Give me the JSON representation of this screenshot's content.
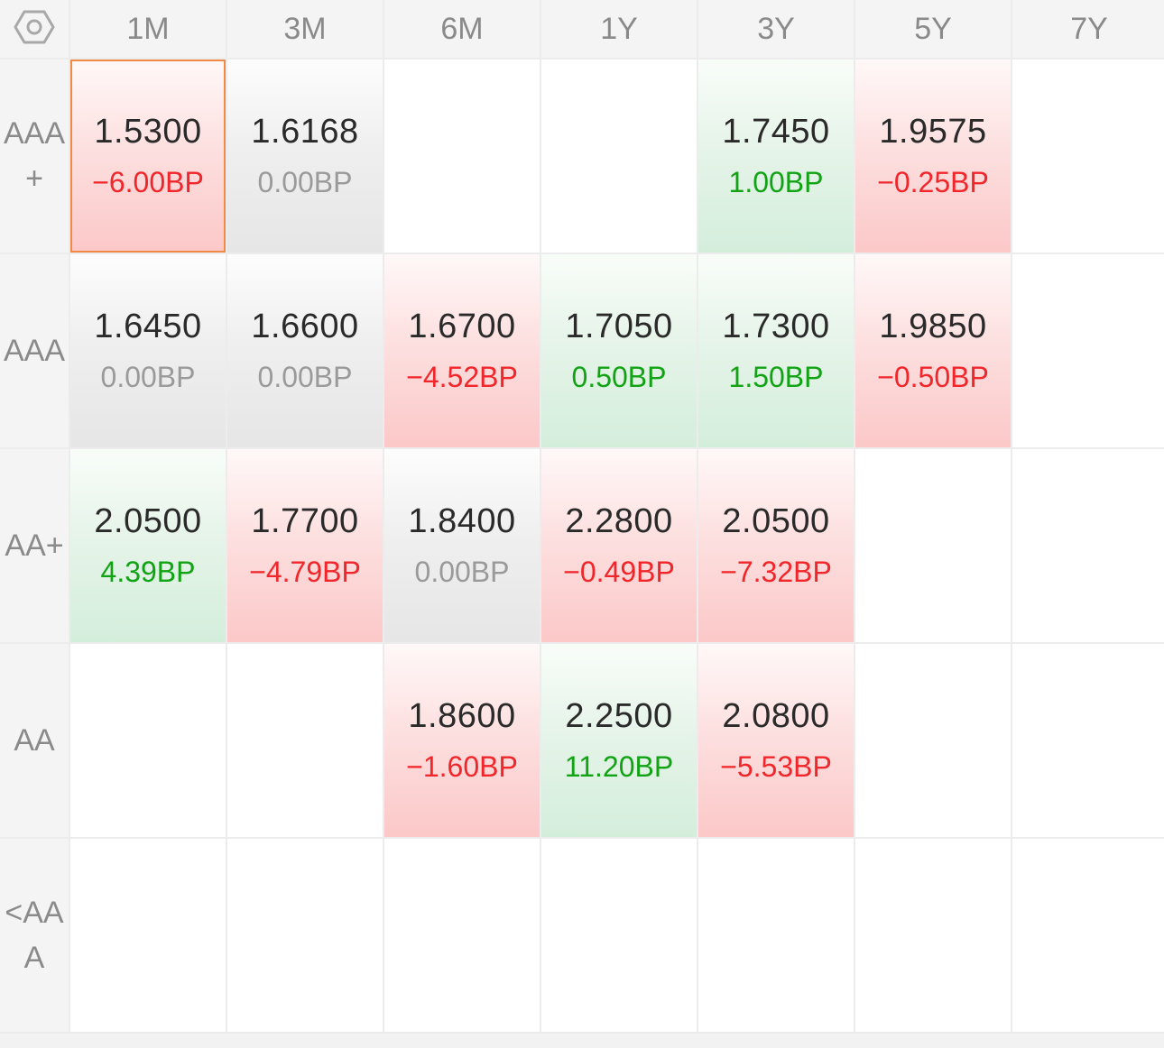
{
  "settings_icon": "hexagon-settings-icon",
  "columns": [
    "1M",
    "3M",
    "6M",
    "1Y",
    "3Y",
    "5Y",
    "7Y"
  ],
  "rows": [
    {
      "label": "AAA+",
      "cells": [
        {
          "rate": "1.5300",
          "change": "−6.00BP",
          "trend": "down",
          "selected": true
        },
        {
          "rate": "1.6168",
          "change": "0.00BP",
          "trend": "flat"
        },
        null,
        null,
        {
          "rate": "1.7450",
          "change": "1.00BP",
          "trend": "up"
        },
        {
          "rate": "1.9575",
          "change": "−0.25BP",
          "trend": "down"
        },
        null
      ]
    },
    {
      "label": "AAA",
      "cells": [
        {
          "rate": "1.6450",
          "change": "0.00BP",
          "trend": "flat"
        },
        {
          "rate": "1.6600",
          "change": "0.00BP",
          "trend": "flat"
        },
        {
          "rate": "1.6700",
          "change": "−4.52BP",
          "trend": "down"
        },
        {
          "rate": "1.7050",
          "change": "0.50BP",
          "trend": "up"
        },
        {
          "rate": "1.7300",
          "change": "1.50BP",
          "trend": "up"
        },
        {
          "rate": "1.9850",
          "change": "−0.50BP",
          "trend": "down"
        },
        null
      ]
    },
    {
      "label": "AA+",
      "cells": [
        {
          "rate": "2.0500",
          "change": "4.39BP",
          "trend": "up"
        },
        {
          "rate": "1.7700",
          "change": "−4.79BP",
          "trend": "down"
        },
        {
          "rate": "1.8400",
          "change": "0.00BP",
          "trend": "flat"
        },
        {
          "rate": "2.2800",
          "change": "−0.49BP",
          "trend": "down"
        },
        {
          "rate": "2.0500",
          "change": "−7.32BP",
          "trend": "down"
        },
        null,
        null
      ]
    },
    {
      "label": "AA",
      "cells": [
        null,
        null,
        {
          "rate": "1.8600",
          "change": "−1.60BP",
          "trend": "down"
        },
        {
          "rate": "2.2500",
          "change": "11.20BP",
          "trend": "up"
        },
        {
          "rate": "2.0800",
          "change": "−5.53BP",
          "trend": "down"
        },
        null,
        null
      ]
    },
    {
      "label": "<AAA",
      "cells": [
        null,
        null,
        null,
        null,
        null,
        null,
        null
      ]
    }
  ]
}
